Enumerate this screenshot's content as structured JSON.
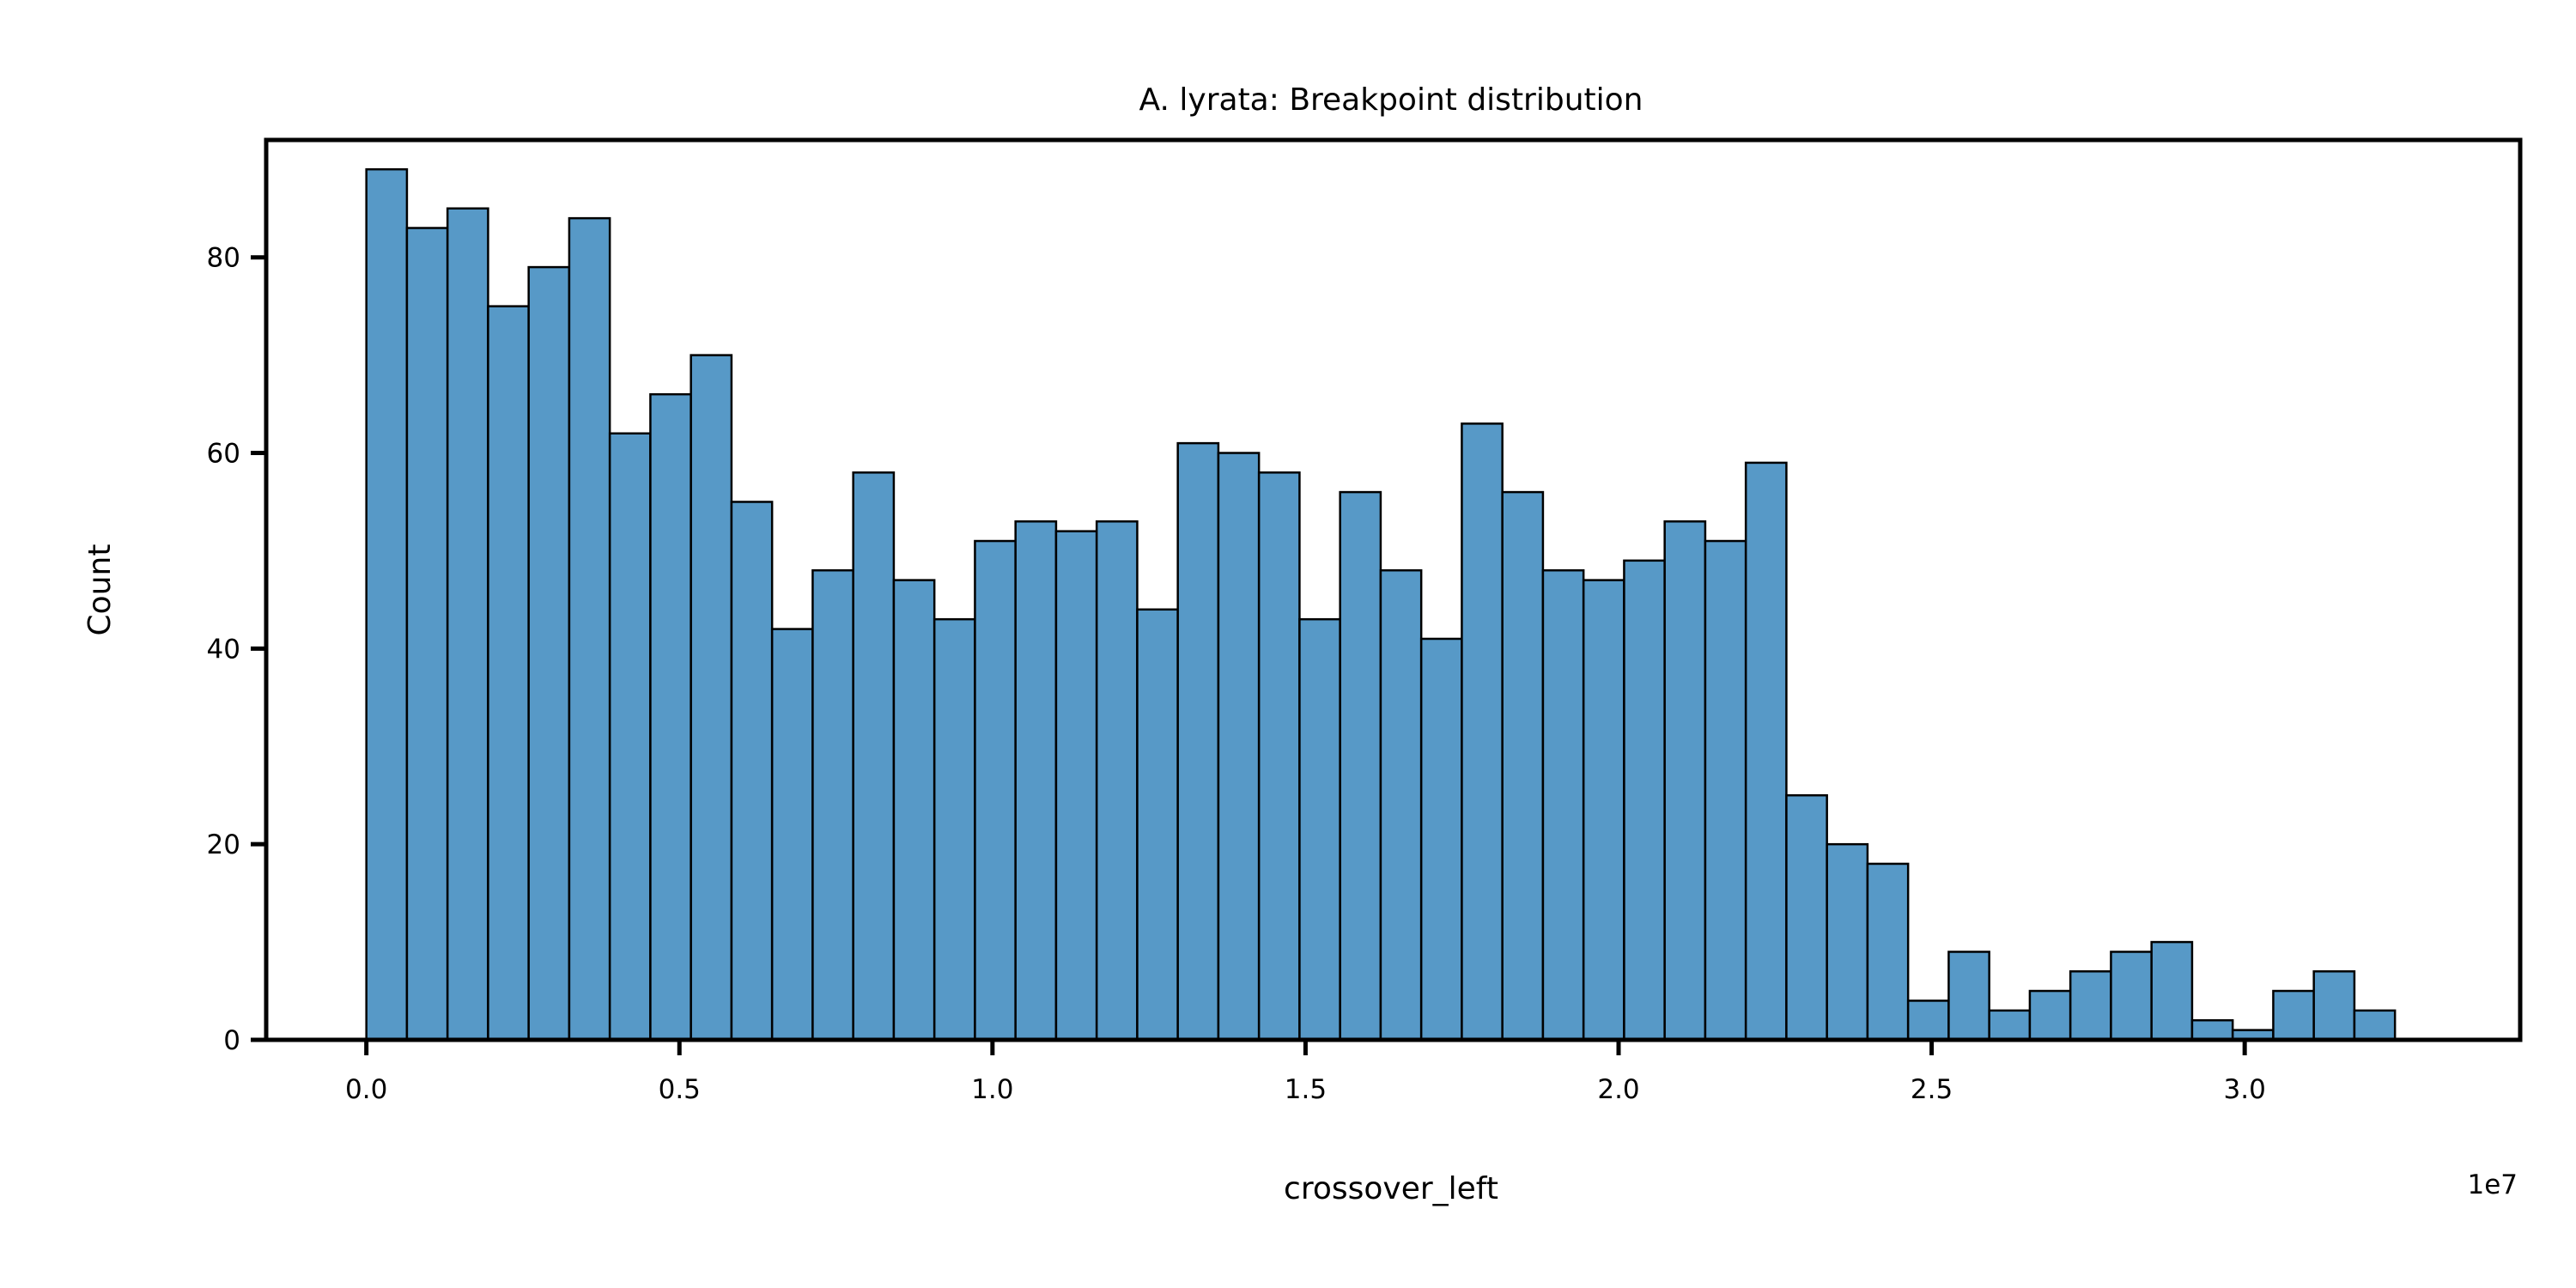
{
  "chart_data": {
    "type": "bar",
    "title": "A. lyrata: Breakpoint distribution",
    "xlabel": "crossover_left",
    "ylabel": "Count",
    "x_offset_label": "1e7",
    "bin_width": 648000,
    "bin_start": 0,
    "xlim": [
      -1600000,
      34400000
    ],
    "ylim": [
      0,
      92
    ],
    "xticks": [
      {
        "value": 0,
        "label": "0.0"
      },
      {
        "value": 5000000,
        "label": "0.5"
      },
      {
        "value": 10000000,
        "label": "1.0"
      },
      {
        "value": 15000000,
        "label": "1.5"
      },
      {
        "value": 20000000,
        "label": "2.0"
      },
      {
        "value": 25000000,
        "label": "2.5"
      },
      {
        "value": 30000000,
        "label": "3.0"
      }
    ],
    "yticks": [
      {
        "value": 0,
        "label": "0"
      },
      {
        "value": 20,
        "label": "20"
      },
      {
        "value": 40,
        "label": "40"
      },
      {
        "value": 60,
        "label": "60"
      },
      {
        "value": 80,
        "label": "80"
      }
    ],
    "values": [
      89,
      83,
      85,
      75,
      79,
      84,
      62,
      66,
      70,
      55,
      42,
      48,
      58,
      47,
      43,
      51,
      53,
      52,
      53,
      44,
      61,
      60,
      58,
      43,
      56,
      48,
      41,
      63,
      56,
      48,
      47,
      49,
      53,
      51,
      59,
      25,
      20,
      18,
      4,
      9,
      3,
      5,
      7,
      9,
      10,
      2,
      1,
      5,
      7,
      3
    ],
    "bar_color": "#5799c7",
    "edge_color": "#000000",
    "grid": false,
    "legend": "none"
  }
}
